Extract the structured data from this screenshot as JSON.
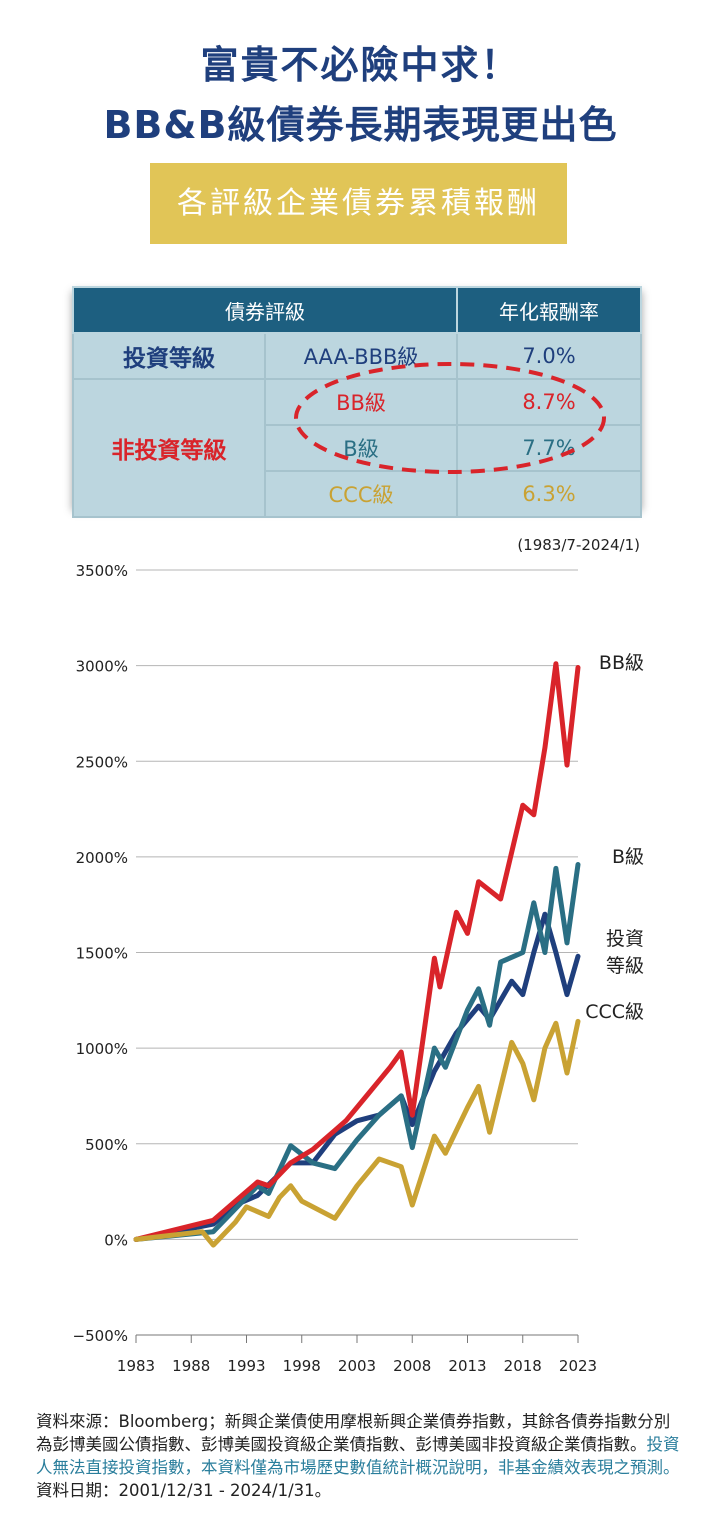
{
  "header": {
    "title_line1": "富貴不必險中求！",
    "title_line2": "BB&B級債券長期表現更出色",
    "banner": "各評級企業債券累積報酬"
  },
  "table": {
    "headers": [
      "債券評級",
      "年化報酬率"
    ],
    "groups": {
      "investment": "投資等級",
      "non_investment": "非投資等級"
    },
    "rows": [
      {
        "rating": "AAA-BBB級",
        "rate": "7.0%"
      },
      {
        "rating": "BB級",
        "rate": "8.7%"
      },
      {
        "rating": "B級",
        "rate": "7.7%"
      },
      {
        "rating": "CCC級",
        "rate": "6.3%"
      }
    ]
  },
  "colors": {
    "bb": "#d9242a",
    "b": "#2a6f84",
    "investment": "#1f3f7d",
    "ccc": "#c9a233",
    "table_header": "#1d5f80",
    "banner": "#e1c557"
  },
  "chart_data": {
    "type": "line",
    "period_label": "(1983/7-2024/1)",
    "ylim": [
      -500,
      3500
    ],
    "yticks": [
      "3500%",
      "3000%",
      "2500%",
      "2000%",
      "1500%",
      "1000%",
      "500%",
      "0%",
      "−500%"
    ],
    "ytick_values": [
      3500,
      3000,
      2500,
      2000,
      1500,
      1000,
      500,
      0,
      -500
    ],
    "xlim": [
      1983,
      2023
    ],
    "xticks": [
      "1983",
      "1988",
      "1993",
      "1998",
      "2003",
      "2008",
      "2013",
      "2018",
      "2023"
    ],
    "xtick_values": [
      1983,
      1988,
      1993,
      1998,
      2003,
      2008,
      2013,
      2018,
      2023
    ],
    "grid": true,
    "series": [
      {
        "name": "投資等級",
        "key": "investment",
        "x": [
          1983,
          1990,
          1992,
          1994,
          1997,
          1999,
          2001,
          2003,
          2005,
          2007,
          2008,
          2010,
          2012,
          2014,
          2015,
          2017,
          2018,
          2019,
          2020,
          2021,
          2022,
          2023
        ],
        "y": [
          0,
          80,
          180,
          230,
          400,
          400,
          550,
          620,
          650,
          750,
          600,
          880,
          1080,
          1220,
          1150,
          1350,
          1280,
          1500,
          1700,
          1500,
          1280,
          1480
        ]
      },
      {
        "name": "B級",
        "key": "b",
        "x": [
          1983,
          1990,
          1992,
          1994,
          1995,
          1997,
          1999,
          2001,
          2003,
          2005,
          2007,
          2008,
          2010,
          2011,
          2013,
          2014,
          2015,
          2016,
          2018,
          2019,
          2020,
          2021,
          2022,
          2023
        ],
        "y": [
          0,
          40,
          160,
          280,
          240,
          490,
          400,
          370,
          520,
          650,
          750,
          480,
          1000,
          900,
          1200,
          1310,
          1120,
          1450,
          1500,
          1760,
          1500,
          1940,
          1550,
          1960
        ]
      },
      {
        "name": "BB級",
        "key": "bb",
        "x": [
          1983,
          1990,
          1992,
          1994,
          1995,
          1997,
          1999,
          2001,
          2002,
          2004,
          2006,
          2007,
          2008,
          2010,
          2010.5,
          2012,
          2013,
          2014,
          2016,
          2018,
          2019,
          2020,
          2021,
          2022,
          2023
        ],
        "y": [
          0,
          100,
          200,
          300,
          280,
          400,
          470,
          570,
          620,
          760,
          900,
          980,
          650,
          1470,
          1320,
          1710,
          1600,
          1870,
          1780,
          2270,
          2220,
          2570,
          3010,
          2480,
          2990
        ]
      },
      {
        "name": "CCC級",
        "key": "ccc",
        "x": [
          1983,
          1989,
          1990,
          1992,
          1993,
          1995,
          1996,
          1997,
          1998,
          2001,
          2003,
          2005,
          2007,
          2008,
          2010,
          2011,
          2013,
          2014,
          2015,
          2017,
          2018,
          2019,
          2020,
          2021,
          2022,
          2023
        ],
        "y": [
          0,
          40,
          -30,
          90,
          170,
          120,
          220,
          280,
          200,
          110,
          280,
          420,
          380,
          180,
          540,
          450,
          690,
          800,
          560,
          1030,
          920,
          730,
          1000,
          1130,
          870,
          1140
        ]
      }
    ]
  },
  "footer": {
    "source": "資料來源：Bloomberg；新興企業債使用摩根新興企業債券指數，其餘各債券指數分別為彭博美國公債指數、彭博美國投資級企業債指數、彭博美國非投資級企業債指數。",
    "disclaimer": "投資人無法直接投資指數，本資料僅為市場歷史數值統計概況說明，非基金績效表現之預測。",
    "date": "資料日期：2001/12/31 - 2024/1/31。"
  }
}
